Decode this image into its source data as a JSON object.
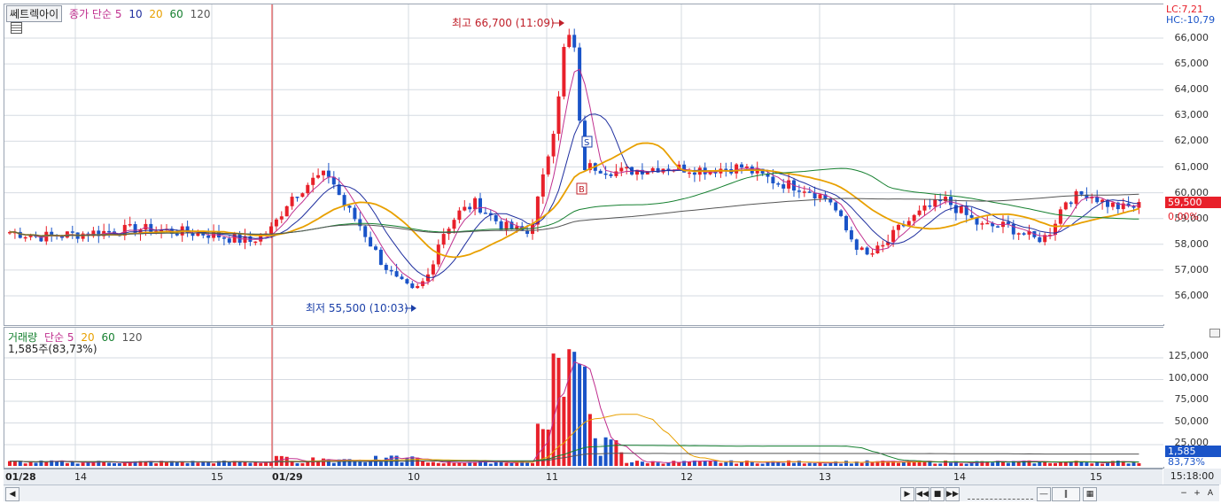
{
  "toolbar": {
    "set_button": "쎄트렉아이"
  },
  "price_legend": {
    "title": "종가 단순",
    "periods": [
      "5",
      "10",
      "20",
      "60",
      "120"
    ],
    "period_colors": [
      "#c0308f",
      "#1f2f9f",
      "#e8a000",
      "#168030",
      "#555555"
    ]
  },
  "volume_legend": {
    "title": "거래량",
    "sub": "단순",
    "periods": [
      "5",
      "20",
      "60",
      "120"
    ],
    "period_colors": [
      "#c0308f",
      "#e8a000",
      "#168030",
      "#555555"
    ],
    "value": "1,585주(83,73%)"
  },
  "annotations": {
    "high": "최고 66,700 (11:09)",
    "low": "최저 55,500 (10:03)",
    "buy": "B",
    "sell": "S"
  },
  "price_axis": {
    "lc": "LC:7,21",
    "hc": "HC:-10,79",
    "ticks": [
      "66,000",
      "65,000",
      "64,000",
      "63,000",
      "62,000",
      "61,000",
      "60,000",
      "59,000",
      "58,000",
      "57,000",
      "56,000"
    ],
    "current_price": "59,500",
    "current_pct": "0,00%"
  },
  "volume_axis": {
    "ticks": [
      "125,000",
      "100,000",
      "75,000",
      "50,000",
      "25,000"
    ],
    "current_volume": "1,585",
    "current_pct": "83,73%"
  },
  "x_axis": {
    "labels": [
      "01/28",
      "14",
      "15",
      "01/29",
      "10",
      "11",
      "12",
      "13",
      "14",
      "15"
    ],
    "time": "15:18:00"
  },
  "colors": {
    "up": "#e8202a",
    "down": "#1a54c8",
    "grid": "#d6dbe2",
    "session_line": "#e03030"
  },
  "chart_data": {
    "type": "candlestick",
    "title": "쎄트렉아이",
    "y_range": [
      55000,
      66800
    ],
    "volume_range": [
      0,
      140000
    ],
    "high": 66700,
    "low": 55500,
    "last": 59500,
    "last_volume": 1585,
    "volume_pct": 83.73,
    "moving_averages": [
      "5",
      "10",
      "20",
      "60",
      "120"
    ]
  }
}
